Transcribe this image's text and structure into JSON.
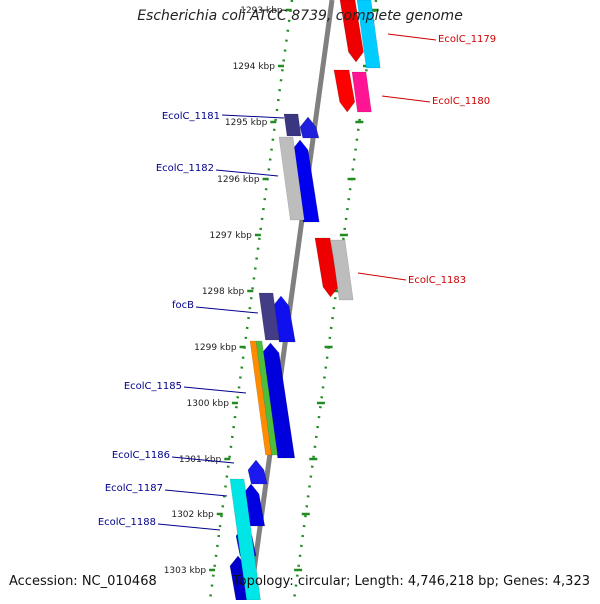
{
  "title": "Escherichia coli ATCC 8739, complete genome",
  "accession_text": "Accession: NC_010468",
  "stats_text": "Topology: circular; Length: 4,746,218 bp; Genes: 4,323",
  "colors": {
    "backbone": "#808080",
    "tick": "#228b22",
    "forward_label": "#00008b",
    "reverse_label": "#cc0000"
  },
  "ticks": [
    {
      "label": "1293 kbp",
      "kbp": 1293
    },
    {
      "label": "1294 kbp",
      "kbp": 1294
    },
    {
      "label": "1295 kbp",
      "kbp": 1295
    },
    {
      "label": "1296 kbp",
      "kbp": 1296
    },
    {
      "label": "1297 kbp",
      "kbp": 1297
    },
    {
      "label": "1298 kbp",
      "kbp": 1298
    },
    {
      "label": "1299 kbp",
      "kbp": 1299
    },
    {
      "label": "1300 kbp",
      "kbp": 1300
    },
    {
      "label": "1301 kbp",
      "kbp": 1301
    },
    {
      "label": "1302 kbp",
      "kbp": 1302
    },
    {
      "label": "1303 kbp",
      "kbp": 1303
    }
  ],
  "forward_labels": [
    {
      "text": "EcolC_1181"
    },
    {
      "text": "EcolC_1182"
    },
    {
      "text": "focB"
    },
    {
      "text": "EcolC_1185"
    },
    {
      "text": "EcolC_1186"
    },
    {
      "text": "EcolC_1187"
    },
    {
      "text": "EcolC_1188"
    }
  ],
  "reverse_labels": [
    {
      "text": "EcolC_1179"
    },
    {
      "text": "EcolC_1180"
    },
    {
      "text": "EcolC_1183"
    }
  ]
}
